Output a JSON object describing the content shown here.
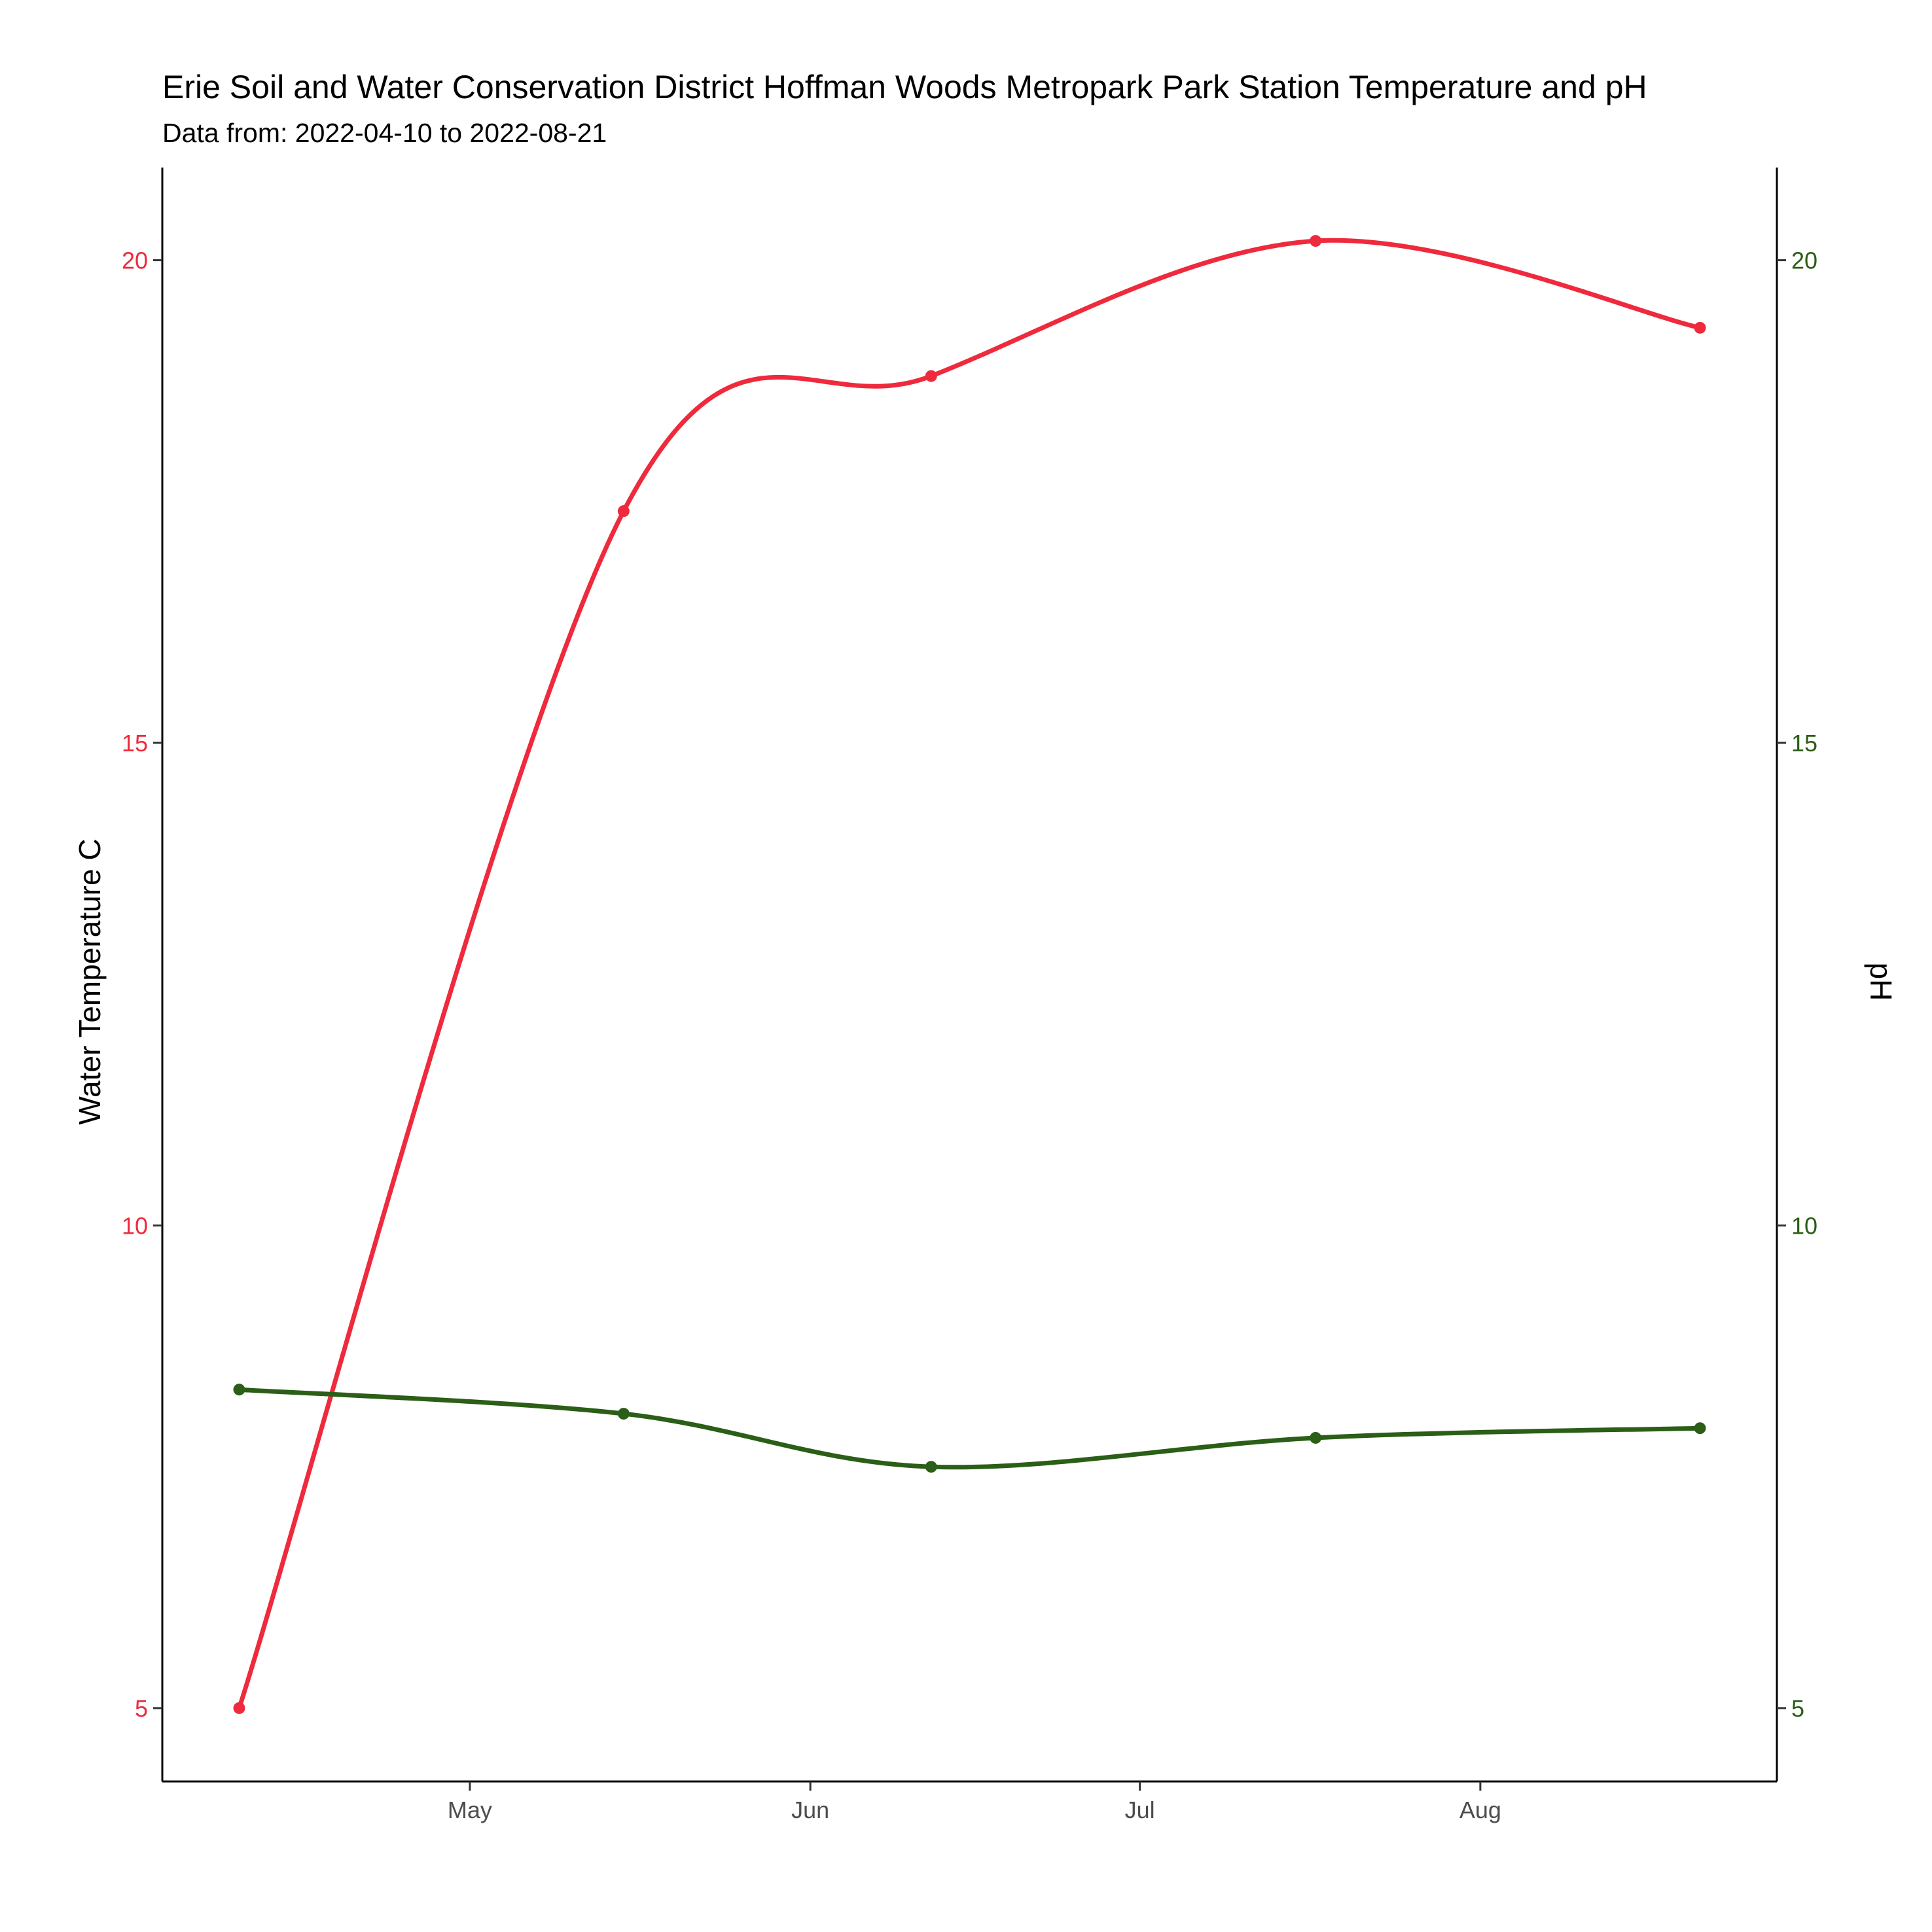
{
  "chart_data": {
    "type": "line",
    "title": "Erie Soil and Water Conservation District Hoffman Woods Metropark Park Station Temperature and pH",
    "subtitle": "Data from: 2022-04-10 to 2022-08-21",
    "xlabel": "",
    "ylabel": "Water Temperature C",
    "y2label": "pH",
    "x_tick_labels": [
      {
        "label": "May",
        "date": "2022-05-01"
      },
      {
        "label": "Jun",
        "date": "2022-06-01"
      },
      {
        "label": "Jul",
        "date": "2022-07-01"
      },
      {
        "label": "Aug",
        "date": "2022-08-01"
      }
    ],
    "xlim": [
      "2022-04-03",
      "2022-08-28"
    ],
    "ylim": [
      4.24,
      20.96
    ],
    "y2lim": [
      4.24,
      20.96
    ],
    "y_ticks": [
      5,
      10,
      15,
      20
    ],
    "y2_ticks": [
      5,
      10,
      15,
      20
    ],
    "grid": false,
    "series": [
      {
        "name": "Water Temperature C",
        "axis": "left",
        "color": "#ee2a3c",
        "x": [
          "2022-04-10",
          "2022-05-15",
          "2022-06-12",
          "2022-07-17",
          "2022-08-21"
        ],
        "values": [
          5.0,
          17.4,
          18.8,
          20.2,
          19.3
        ]
      },
      {
        "name": "pH",
        "axis": "right",
        "color": "#2b5e16",
        "x": [
          "2022-04-10",
          "2022-05-15",
          "2022-06-12",
          "2022-07-17",
          "2022-08-21"
        ],
        "values": [
          8.3,
          8.05,
          7.5,
          7.8,
          7.9
        ]
      }
    ]
  }
}
